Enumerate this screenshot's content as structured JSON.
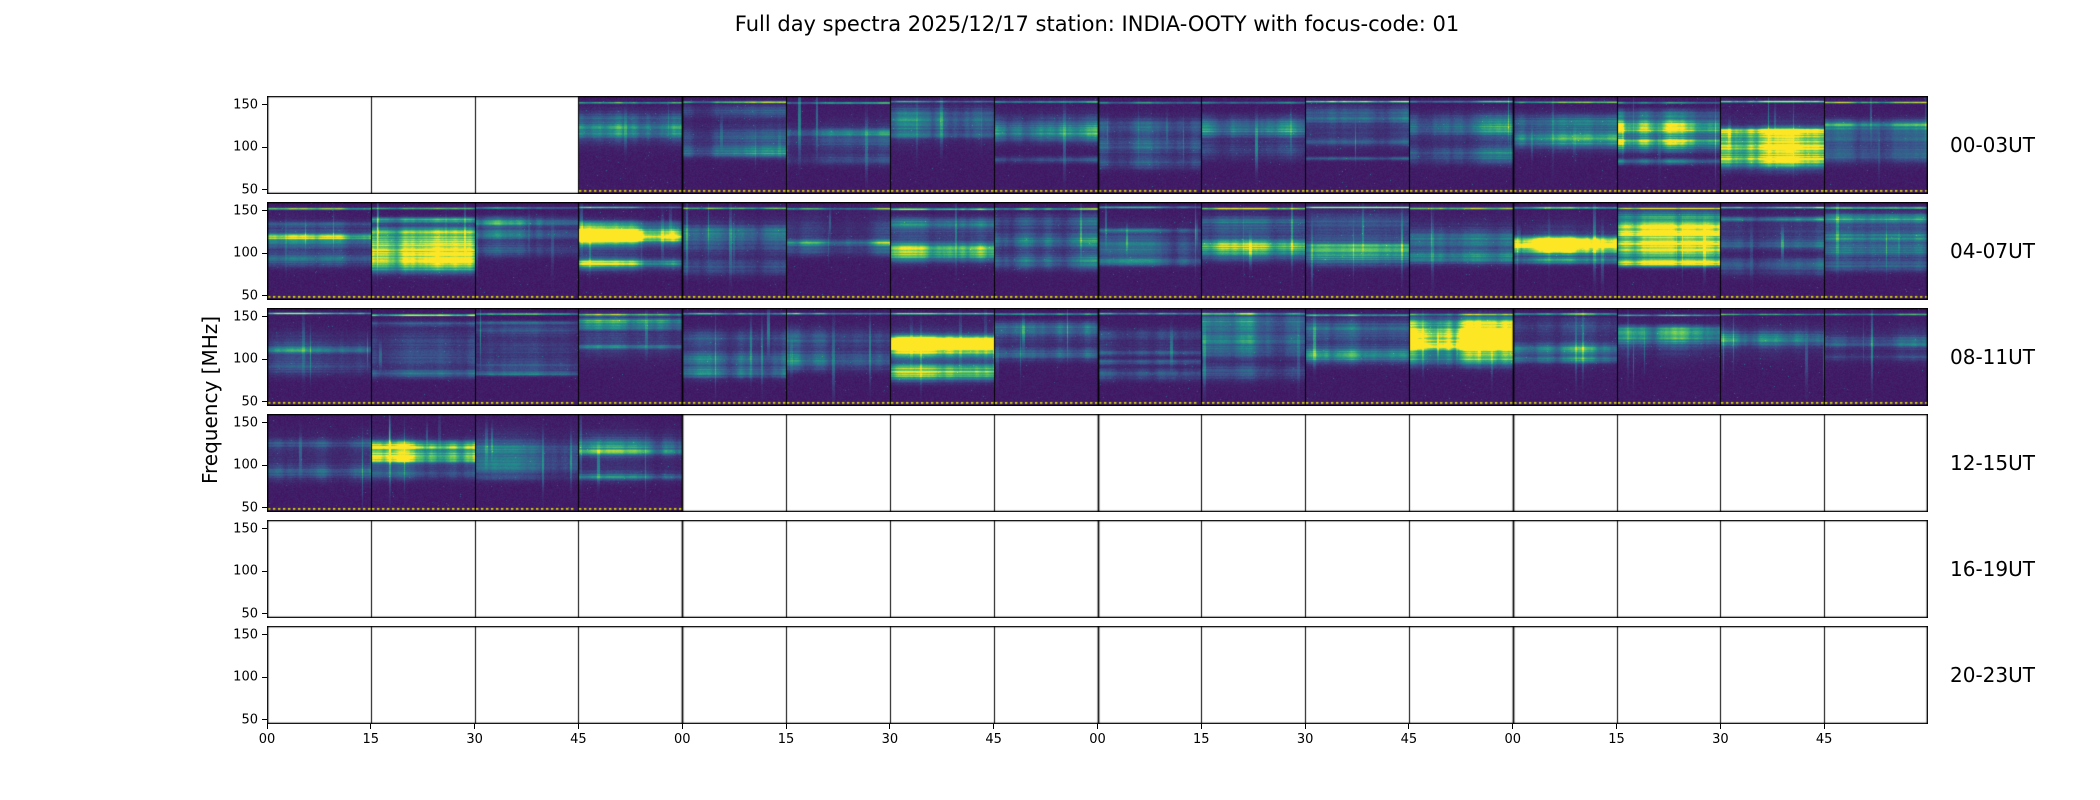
{
  "title": "Full day spectra 2025/12/17 station: INDIA-OOTY with focus-code: 01",
  "ylabel": "Frequency [MHz]",
  "chart_data": {
    "type": "heatmap",
    "title": "Full day spectra 2025/12/17 station: INDIA-OOTY with focus-code: 01",
    "date": "2025/12/17",
    "station": "INDIA-OOTY",
    "focus_code": "01",
    "ylabel": "Frequency [MHz]",
    "colormap": "viridis",
    "grid": false,
    "legend_position": "none",
    "freq_axis": {
      "ticks": [
        150,
        100,
        50
      ],
      "range": [
        45,
        160
      ],
      "unit": "MHz"
    },
    "x_tick_labels": [
      "00",
      "15",
      "30",
      "45",
      "00",
      "15",
      "30",
      "45",
      "00",
      "15",
      "30",
      "45",
      "00",
      "15",
      "30",
      "45"
    ],
    "minutes_per_segment": 15,
    "segments_per_row": 16,
    "dotted_line_color": "#d8d800",
    "render_seed": 20251217,
    "rows": [
      {
        "label": "00-03UT",
        "data_segments": [
          false,
          false,
          false,
          true,
          true,
          true,
          true,
          true,
          true,
          true,
          true,
          true,
          true,
          true,
          true,
          true
        ],
        "bright_segments": [
          13,
          14
        ],
        "top_line": true,
        "activity": 0.9
      },
      {
        "label": "04-07UT",
        "data_segments": [
          true,
          true,
          true,
          true,
          true,
          true,
          true,
          true,
          true,
          true,
          true,
          true,
          true,
          true,
          true,
          true
        ],
        "bright_segments": [
          1,
          3,
          12,
          13
        ],
        "top_line": true,
        "activity": 1.1
      },
      {
        "label": "08-11UT",
        "data_segments": [
          true,
          true,
          true,
          true,
          true,
          true,
          true,
          true,
          true,
          true,
          true,
          true,
          true,
          true,
          true,
          true
        ],
        "bright_segments": [
          6,
          11
        ],
        "top_line": true,
        "activity": 1.0
      },
      {
        "label": "12-15UT",
        "data_segments": [
          true,
          true,
          true,
          true,
          false,
          false,
          false,
          false,
          false,
          false,
          false,
          false,
          false,
          false,
          false,
          false
        ],
        "bright_segments": [
          1
        ],
        "top_line": false,
        "activity": 0.9
      },
      {
        "label": "16-19UT",
        "data_segments": [
          false,
          false,
          false,
          false,
          false,
          false,
          false,
          false,
          false,
          false,
          false,
          false,
          false,
          false,
          false,
          false
        ],
        "bright_segments": [],
        "top_line": false,
        "activity": 0
      },
      {
        "label": "20-23UT",
        "data_segments": [
          false,
          false,
          false,
          false,
          false,
          false,
          false,
          false,
          false,
          false,
          false,
          false,
          false,
          false,
          false,
          false
        ],
        "bright_segments": [],
        "top_line": false,
        "activity": 0
      }
    ]
  }
}
